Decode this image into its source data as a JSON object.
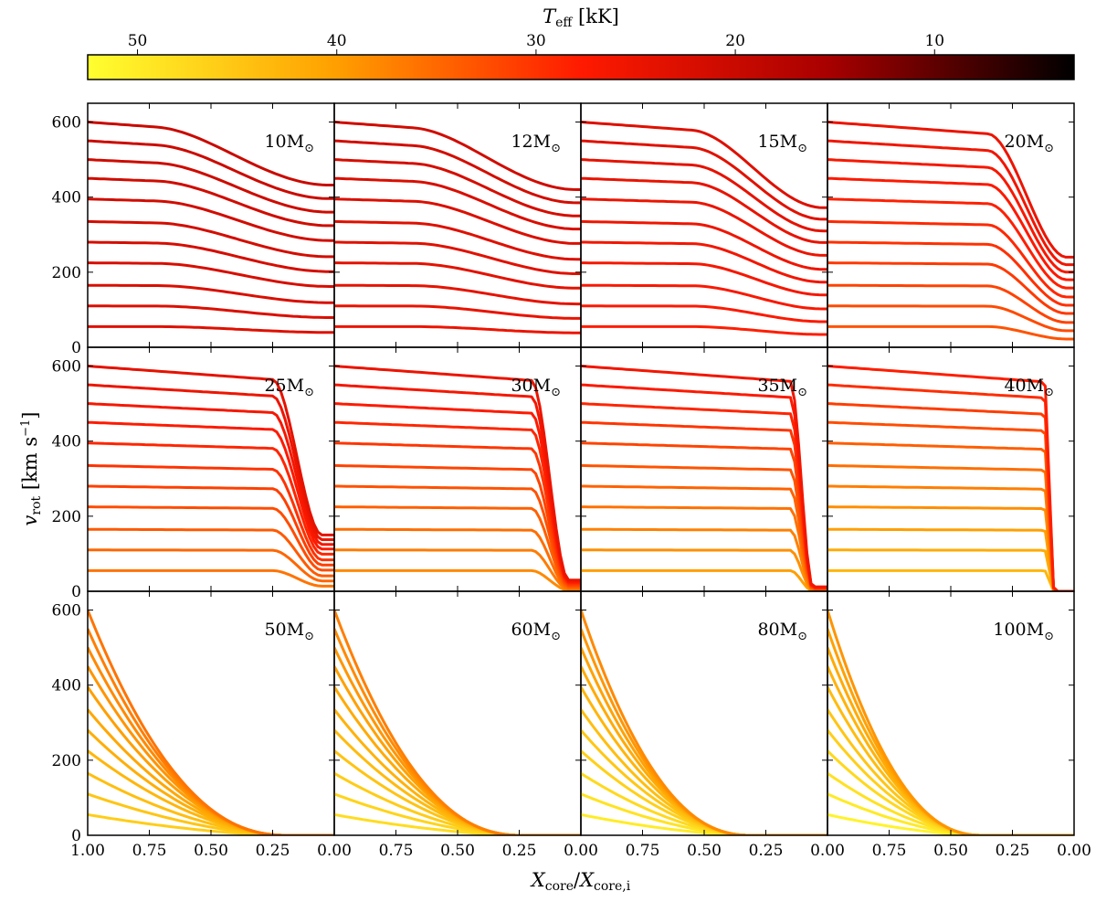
{
  "chart_data": {
    "type": "line",
    "title": "",
    "colorbar": {
      "label_main": "T",
      "label_sub": "eff",
      "label_unit": " [kK]",
      "min": 3.0,
      "max": 52.5,
      "ticks": [
        50,
        40,
        30,
        20,
        10
      ],
      "tick_labels": [
        "50",
        "40",
        "30",
        "20",
        "10"
      ],
      "colormap": "hot_r",
      "colors": [
        "#ffff30",
        "#ffa000",
        "#ff1a00",
        "#a80000",
        "#000000"
      ]
    },
    "xlabel": {
      "var": "X",
      "sub1": "core",
      "slash": "/",
      "sub2": "core,i"
    },
    "ylabel": {
      "var": "v",
      "sub": "rot",
      "unit": "[km s",
      "exp": "−1",
      "close": "]"
    },
    "xlim": [
      1.0,
      0.0
    ],
    "ylim": [
      0,
      650
    ],
    "x_ticks": [
      1.0,
      0.75,
      0.5,
      0.25,
      0.0
    ],
    "x_tick_labels": [
      "1.00",
      "0.75",
      "0.50",
      "0.25",
      "0.00"
    ],
    "y_ticks": [
      0,
      200,
      400,
      600
    ],
    "y_tick_labels": [
      "0",
      "200",
      "400",
      "600"
    ],
    "initial_velocities": [
      55,
      110,
      165,
      225,
      280,
      335,
      395,
      450,
      500,
      550,
      600
    ],
    "panels": [
      {
        "label": "10M",
        "symbol": "⊙",
        "mass": 10,
        "teff_start": 23,
        "teff_end": 20,
        "plateau_end": 0.72,
        "drop_end": 0.02,
        "final_frac": 0.72,
        "high_final": 215
      },
      {
        "label": "12M",
        "symbol": "⊙",
        "mass": 12,
        "teff_start": 25,
        "teff_end": 21,
        "plateau_end": 0.68,
        "drop_end": 0.02,
        "final_frac": 0.7,
        "high_final": 185
      },
      {
        "label": "15M",
        "symbol": "⊙",
        "mass": 15,
        "teff_start": 28,
        "teff_end": 23,
        "plateau_end": 0.55,
        "drop_end": 0.02,
        "final_frac": 0.62,
        "high_final": 130
      },
      {
        "label": "20M",
        "symbol": "⊙",
        "mass": 20,
        "teff_start": 33,
        "teff_end": 25,
        "plateau_end": 0.35,
        "drop_end": 0.03,
        "final_frac": 0.4,
        "high_final": 80
      },
      {
        "label": "25M",
        "symbol": "⊙",
        "mass": 25,
        "teff_start": 36,
        "teff_end": 24,
        "plateau_end": 0.25,
        "drop_end": 0.05,
        "final_frac": 0.25,
        "high_final": 40
      },
      {
        "label": "30M",
        "symbol": "⊙",
        "mass": 30,
        "teff_start": 38,
        "teff_end": 25,
        "plateau_end": 0.2,
        "drop_end": 0.05,
        "final_frac": 0.05,
        "high_final": 5
      },
      {
        "label": "35M",
        "symbol": "⊙",
        "mass": 35,
        "teff_start": 40,
        "teff_end": 26,
        "plateau_end": 0.15,
        "drop_end": 0.06,
        "final_frac": 0.02,
        "high_final": 0
      },
      {
        "label": "40M",
        "symbol": "⊙",
        "mass": 40,
        "teff_start": 43,
        "teff_end": 28,
        "plateau_end": 0.12,
        "drop_end": 0.08,
        "final_frac": 0.0,
        "high_final": 0
      },
      {
        "label": "50M",
        "symbol": "⊙",
        "mass": 50,
        "teff_start": 46,
        "teff_end": 36,
        "plateau_end": 0.0,
        "drop_end": 0.2,
        "final_frac": 0.0,
        "high_final": 0
      },
      {
        "label": "60M",
        "symbol": "⊙",
        "mass": 60,
        "teff_start": 48,
        "teff_end": 37,
        "plateau_end": 0.0,
        "drop_end": 0.25,
        "final_frac": 0.0,
        "high_final": 0
      },
      {
        "label": "80M",
        "symbol": "⊙",
        "mass": 80,
        "teff_start": 50,
        "teff_end": 38,
        "plateau_end": 0.0,
        "drop_end": 0.32,
        "final_frac": 0.0,
        "high_final": 0
      },
      {
        "label": "100M",
        "symbol": "⊙",
        "mass": 100,
        "teff_start": 51,
        "teff_end": 39,
        "plateau_end": 0.0,
        "drop_end": 0.38,
        "final_frac": 0.0,
        "high_final": 0
      }
    ]
  }
}
